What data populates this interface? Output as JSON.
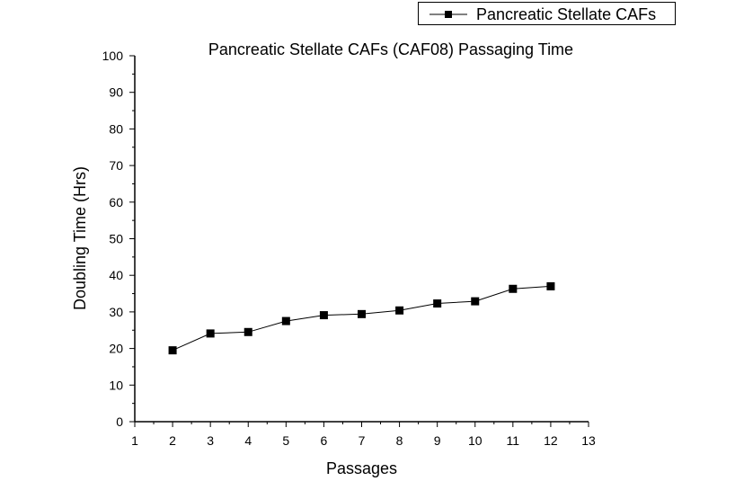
{
  "chart_data": {
    "type": "line",
    "title": "Pancreatic Stellate CAFs (CAF08) Passaging Time",
    "xlabel": "Passages",
    "ylabel": "Doubling Time (Hrs)",
    "xlim": [
      1,
      13
    ],
    "ylim": [
      0,
      100
    ],
    "x_ticks": [
      1,
      2,
      3,
      4,
      5,
      6,
      7,
      8,
      9,
      10,
      11,
      12,
      13
    ],
    "y_ticks": [
      0,
      10,
      20,
      30,
      40,
      50,
      60,
      70,
      80,
      90,
      100
    ],
    "grid": false,
    "legend_position": "top-right",
    "series": [
      {
        "name": "Pancreatic Stellate CAFs",
        "color": "#000000",
        "marker": "square",
        "x": [
          2,
          3,
          4,
          5,
          6,
          7,
          8,
          9,
          10,
          11,
          12
        ],
        "y": [
          19.5,
          24.1,
          24.5,
          27.5,
          29.1,
          29.4,
          30.4,
          32.3,
          32.9,
          36.3,
          37.0
        ]
      }
    ]
  }
}
